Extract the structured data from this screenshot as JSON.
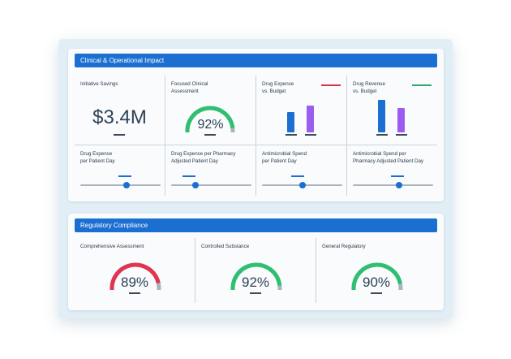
{
  "clinical": {
    "title": "Clinical & Operational Impact",
    "savings": {
      "label": "Initiative Savings",
      "value": "$3.4M"
    },
    "focused": {
      "label": "Focused Clinical\nAssessment",
      "value": "92%",
      "percent": 92,
      "color": "#2fbf71"
    },
    "expense_budget": {
      "label": "Drug Expense\nvs. Budget",
      "legend_color": "#d9324a",
      "bars": [
        {
          "value": 0.55,
          "color": "#1b6fd1"
        },
        {
          "value": 0.72,
          "color": "#9b5cf0"
        }
      ]
    },
    "revenue_budget": {
      "label": "Drug Revenue\nvs. Budget",
      "legend_color": "#2fa66b",
      "bars": [
        {
          "value": 0.88,
          "color": "#1b6fd1"
        },
        {
          "value": 0.66,
          "color": "#9b5cf0"
        }
      ]
    },
    "sliders": [
      {
        "label": "Drug Expense\nper Patient Day",
        "level": 0.58
      },
      {
        "label": "Drug Expense per Pharmacy\nAdjusted Patient Day",
        "level": 0.3
      },
      {
        "label": "Antimicrobial Spend\nper Patient Day",
        "level": 0.5
      },
      {
        "label": "Antimicrobial Spend per\nPharmacy Adjusted Patient Day",
        "level": 0.58
      }
    ]
  },
  "regulatory": {
    "title": "Regulatory Compliance",
    "gauges": [
      {
        "label": "Comprehensive Assessment",
        "value": "89%",
        "percent": 89,
        "color": "#e0344f"
      },
      {
        "label": "Controlled Substance",
        "value": "92%",
        "percent": 92,
        "color": "#2fbf71"
      },
      {
        "label": "General Regulatory",
        "value": "90%",
        "percent": 90,
        "color": "#2fbf71"
      }
    ]
  },
  "colors": {
    "accent": "#1b6fd1",
    "track": "#aab4bd"
  }
}
